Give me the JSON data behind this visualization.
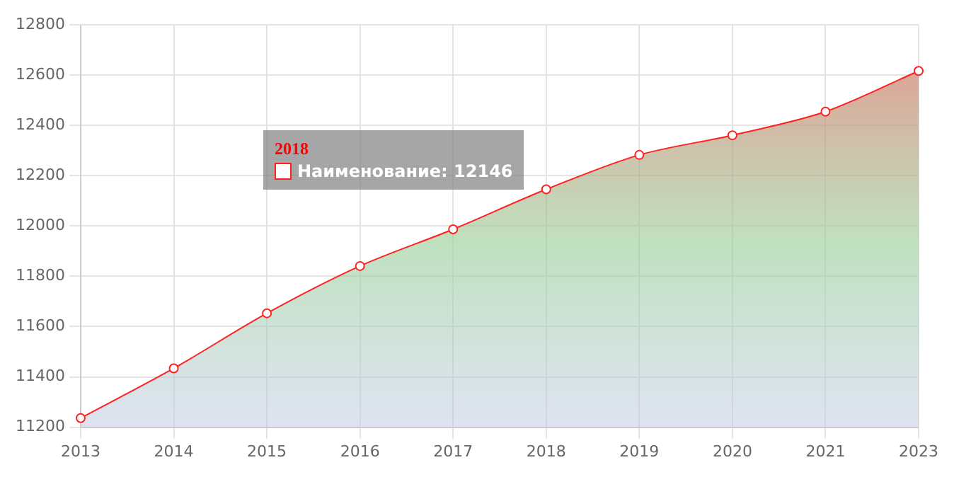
{
  "chart_data": {
    "type": "area",
    "categories": [
      "2013",
      "2014",
      "2015",
      "2016",
      "2017",
      "2018",
      "2019",
      "2020",
      "2021",
      "2023"
    ],
    "series": [
      {
        "color": "#ff2020",
        "values": [
          11236,
          11434,
          11653,
          11841,
          11987,
          12146,
          12283,
          12361,
          12455,
          12617
        ]
      }
    ],
    "ylim": [
      11200,
      12800
    ],
    "yticks": [
      11200,
      11400,
      11600,
      11800,
      12000,
      12200,
      12400,
      12600,
      12800
    ],
    "grid": true,
    "legend": false,
    "marker": "circle",
    "annotations": [
      "2018",
      "Наименование: 12146"
    ]
  }
}
